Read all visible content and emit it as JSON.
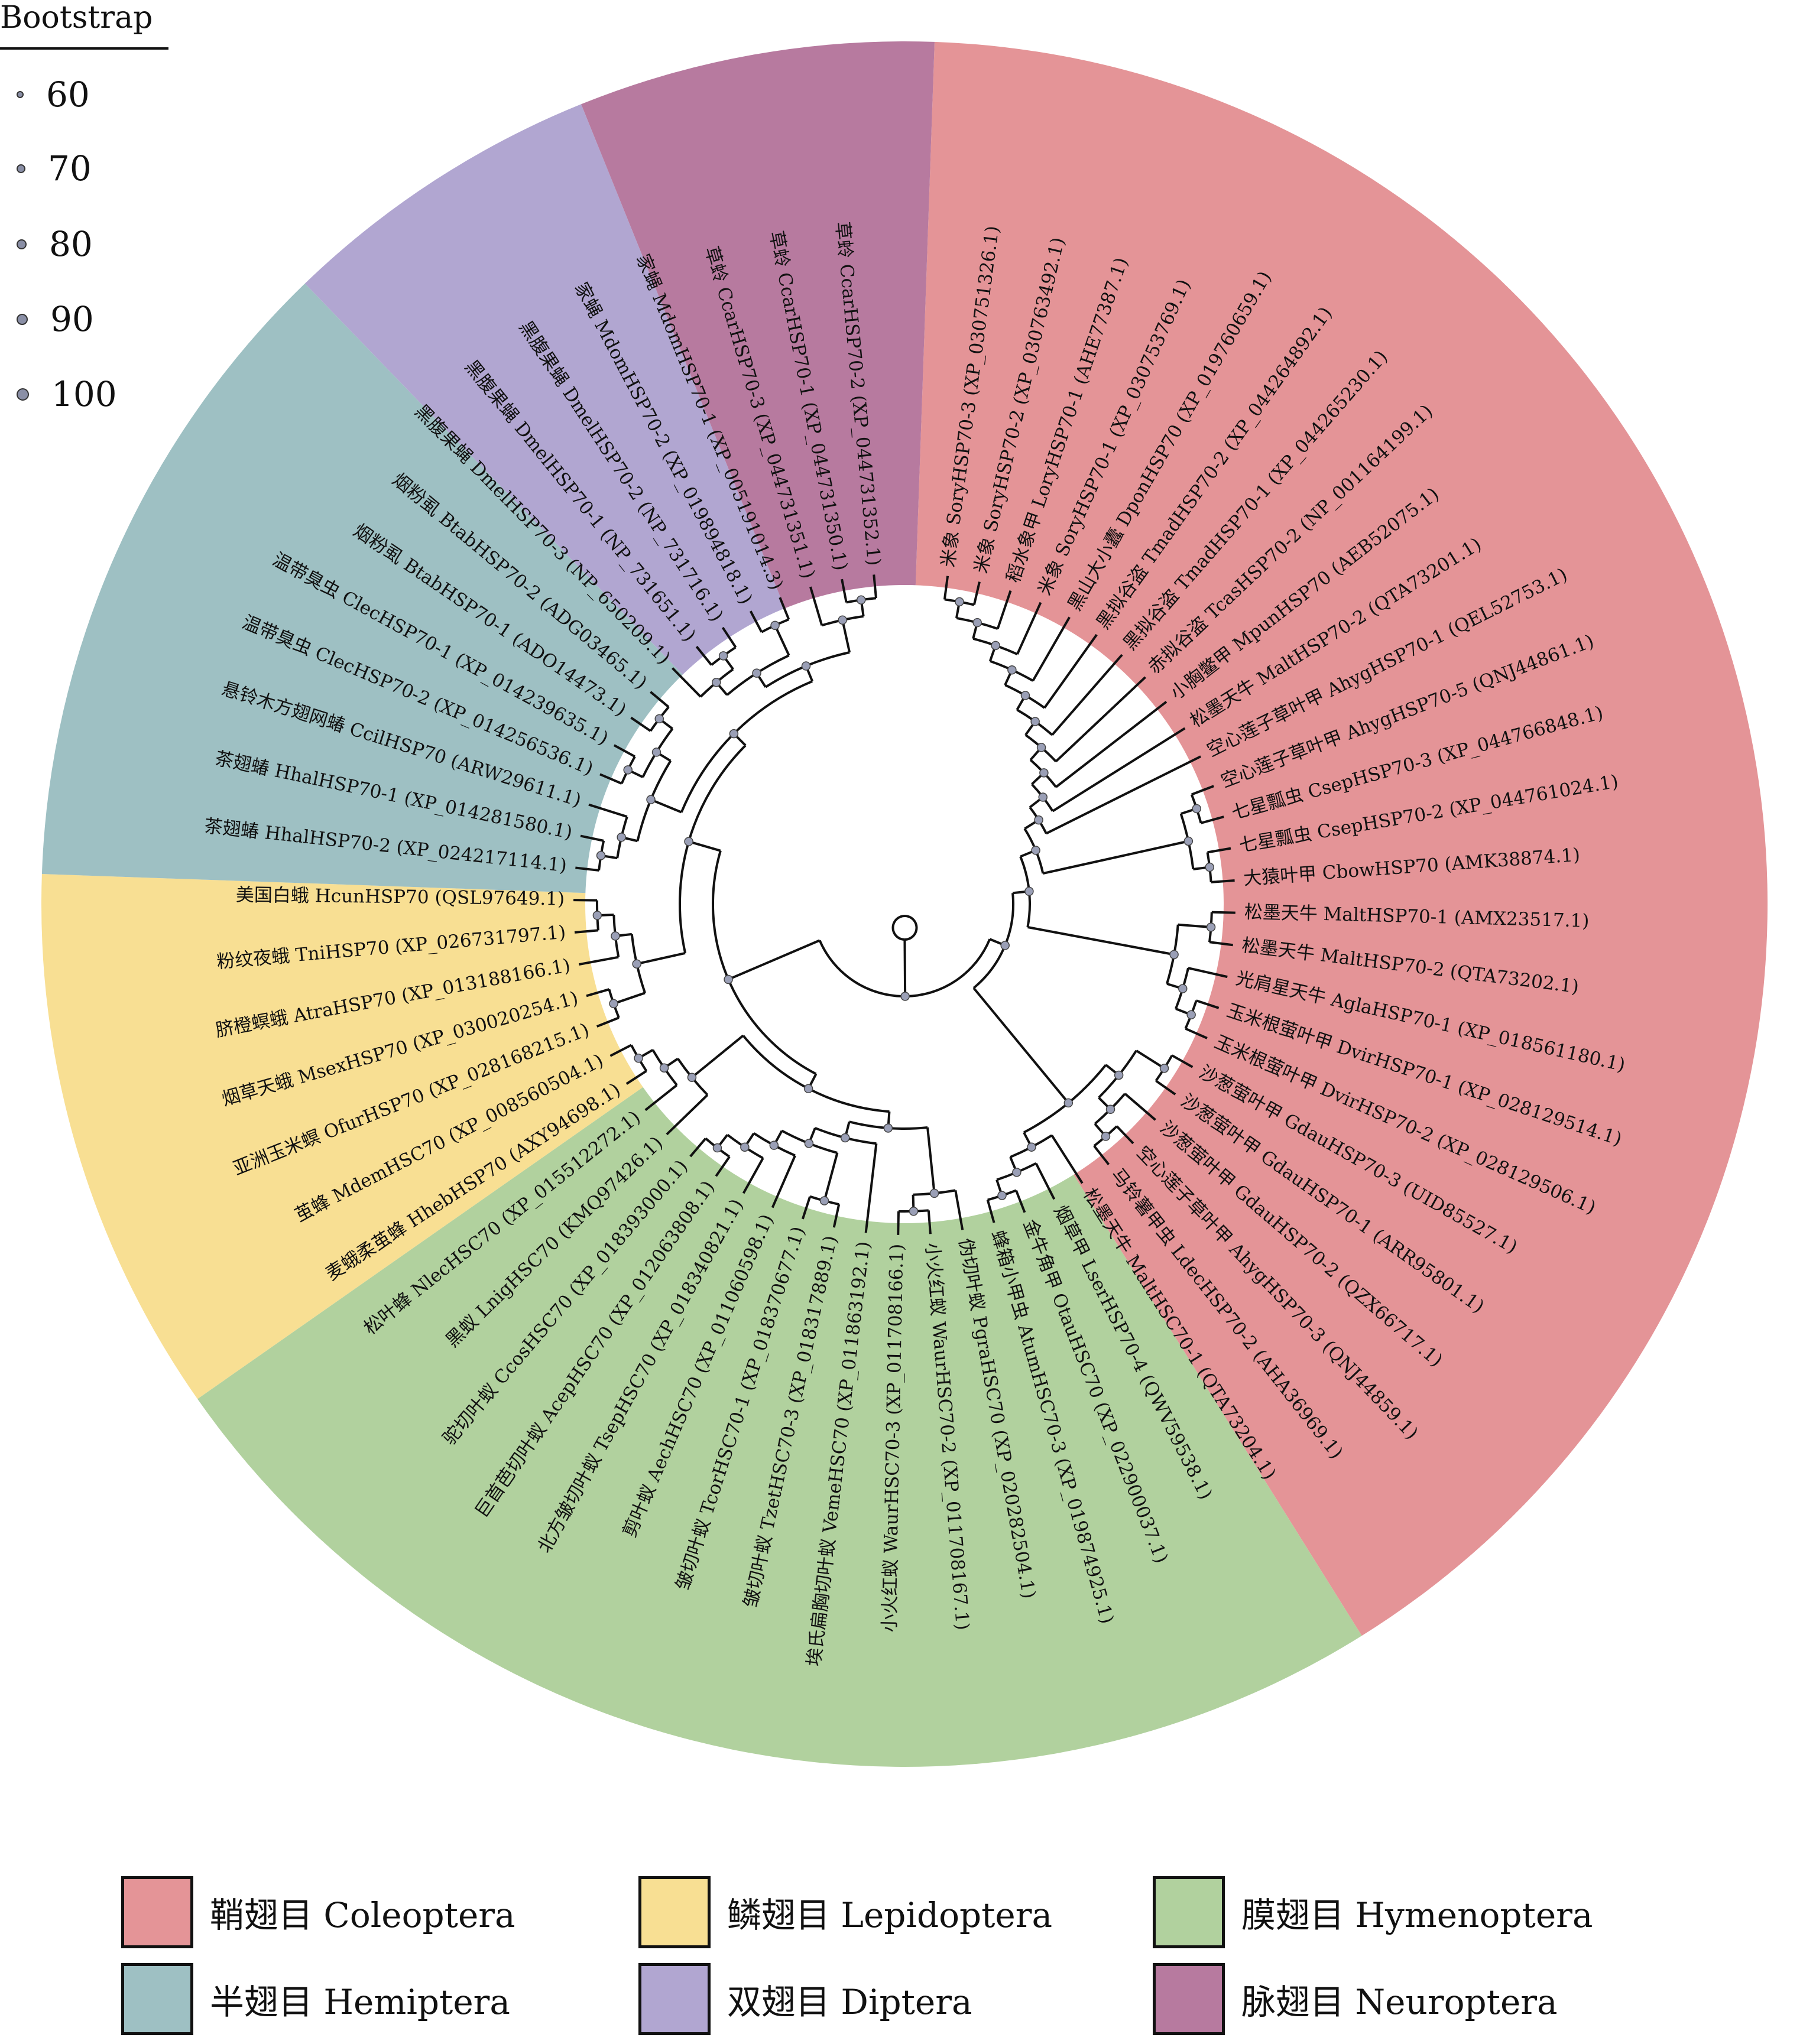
{
  "bootstrap": {
    "title": "Bootstrap",
    "levels": [
      {
        "label": "60",
        "dot": 8
      },
      {
        "label": "70",
        "dot": 11
      },
      {
        "label": "80",
        "dot": 13
      },
      {
        "label": "90",
        "dot": 15
      },
      {
        "label": "100",
        "dot": 17
      }
    ]
  },
  "legend": [
    {
      "label": "鞘翅目 Coleoptera",
      "color": "#e49497"
    },
    {
      "label": "鳞翅目 Lepidoptera",
      "color": "#f8df93"
    },
    {
      "label": "膜翅目 Hymenoptera",
      "color": "#b1d19e"
    },
    {
      "label": "半翅目 Hemiptera",
      "color": "#9ec0c3"
    },
    {
      "label": "双翅目 Diptera",
      "color": "#b1a6d1"
    },
    {
      "label": "脉翅目 Neuroptera",
      "color": "#b77a9f"
    }
  ],
  "sectors": [
    {
      "order": "鞘翅目 Coleoptera",
      "color": "#e49497",
      "start": 2,
      "end": 148
    },
    {
      "order": "膜翅目 Hymenoptera",
      "color": "#b1d19e",
      "start": 148,
      "end": 235
    },
    {
      "order": "鳞翅目 Lepidoptera",
      "color": "#f8df93",
      "start": 235,
      "end": 272
    },
    {
      "order": "半翅目 Hemiptera",
      "color": "#9ec0c3",
      "start": 272,
      "end": 316
    },
    {
      "order": "双翅目 Diptera",
      "color": "#b1a6d1",
      "start": 316,
      "end": 338
    },
    {
      "order": "脉翅目 Neuroptera",
      "color": "#b77a9f",
      "start": 338,
      "end": 362
    }
  ],
  "leaves": [
    "米象 SoryHSP70-3 (XP_030751326.1)",
    "米象 SoryHSP70-2 (XP_030763492.1)",
    "稻水象甲 LoryHSP70-1 (AHE77387.1)",
    "米象 SoryHSP70-1 (XP_030753769.1)",
    "黑山大小蠹 DponHSP70 (XP_019760659.1)",
    "黑拟谷盗 TmadHSP70-2 (XP_044264892.1)",
    "黑拟谷盗 TmadHSP70-1 (XP_044265230.1)",
    "赤拟谷盗 TcasHSP70-2 (NP_001164199.1)",
    "小胸鳖甲 MpunHSP70 (AEB52075.1)",
    "松墨天牛 MaltHSP70-2 (QTA73201.1)",
    "空心莲子草叶甲 AhygHSP70-1 (QEL52753.1)",
    "空心莲子草叶甲 AhygHSP70-5 (QNJ44861.1)",
    "七星瓢虫 CsepHSP70-3 (XP_044766848.1)",
    "七星瓢虫 CsepHSP70-2 (XP_044761024.1)",
    "大猿叶甲 CbowHSP70 (AMK38874.1)",
    "松墨天牛 MaltHSP70-1 (AMX23517.1)",
    "松墨天牛 MaltHSP70-2 (QTA73202.1)",
    "光肩星天牛 AglaHSP70-1 (XP_018561180.1)",
    "玉米根萤叶甲 DvirHSP70-1 (XP_028129514.1)",
    "玉米根萤叶甲 DvirHSP70-2 (XP_028129506.1)",
    "沙葱萤叶甲 GdauHSP70-3 (UID85527.1)",
    "沙葱萤叶甲 GdauHSP70-1 (ARR95801.1)",
    "沙葱萤叶甲 GdauHSP70-2 (QZX66717.1)",
    "空心莲子草叶甲 AhygHSP70-3 (QNJ44859.1)",
    "马铃薯甲虫 LdecHSP70-2 (AHA36969.1)",
    "松墨天牛 MaltHSC70-1 (QTA73204.1)",
    "烟草甲 LserHSP70-4 (QWV59538.1)",
    "金牛角甲 OtauHSC70 (XP_022900037.1)",
    "蜂箱小甲虫 AtumHSC70-3 (XP_019874925.1)",
    "伪切叶蚁 PgraHSC70 (XP_020282504.1)",
    "小火红蚁 WaurHSC70-2 (XP_011708167.1)",
    "小火红蚁 WaurHSC70-3 (XP_011708166.1)",
    "埃氏扁胸切叶蚁 VemeHSC70 (XP_011863192.1)",
    "皱切叶蚁 TzetHSC70-3 (XP_018317889.1)",
    "皱切叶蚁 TcorHSC70-1 (XP_018370677.1)",
    "剪叶蚁 AechHSC70 (XP_011060598.1)",
    "北方皱切叶蚁 TsepHSC70 (XP_018340821.1)",
    "巨首芭切叶蚁 AcepHSC70 (XP_012063808.1)",
    "驼切叶蚁 CcosHSC70 (XP_018393000.1)",
    "黑蚁 LnigHSC70 (KMQ97426.1)",
    "松叶蜂 NlecHSC70 (XP_015512272.1)",
    "麦蛾柔茧蜂 HhebHSP70 (AXY94698.1)",
    "茧蜂 MdemHSC70 (XP_008560504.1)",
    "亚洲玉米螟 OfurHSP70 (XP_028168215.1)",
    "烟草天蛾 MsexHSP70 (XP_030020254.1)",
    "脐橙螟蛾 AtraHSP70 (XP_013188166.1)",
    "粉纹夜蛾 TniHSP70 (XP_026731797.1)",
    "美国白蛾 HcunHSP70 (QSL97649.1)",
    "茶翅蝽 HhalHSP70-2 (XP_024217114.1)",
    "茶翅蝽 HhalHSP70-1 (XP_014281580.1)",
    "悬铃木方翅网蝽 CcilHSP70 (ARW29611.1)",
    "温带臭虫 ClecHSP70-2 (XP_014256536.1)",
    "温带臭虫 ClecHSP70-1 (XP_014239635.1)",
    "烟粉虱 BtabHSP70-1 (ADO14473.1)",
    "烟粉虱 BtabHSP70-2 (ADG03465.1)",
    "黑腹果蝇 DmelHSP70-3 (NP_650209.1)",
    "黑腹果蝇 DmelHSP70-1 (NP_731651.1)",
    "黑腹果蝇 DmelHSP70-2 (NP_731716.1)",
    "家蝇 MdomHSP70-2 (XP_019894818.1)",
    "家蝇 MdomHSP70-1 (XP_005191014.3)",
    "草蛉 CcarHSP70-3 (XP_044731351.1)",
    "草蛉 CcarHSP70-1 (XP_044731350.1)",
    "草蛉 CcarHSP70-2 (XP_044731352.1)"
  ]
}
